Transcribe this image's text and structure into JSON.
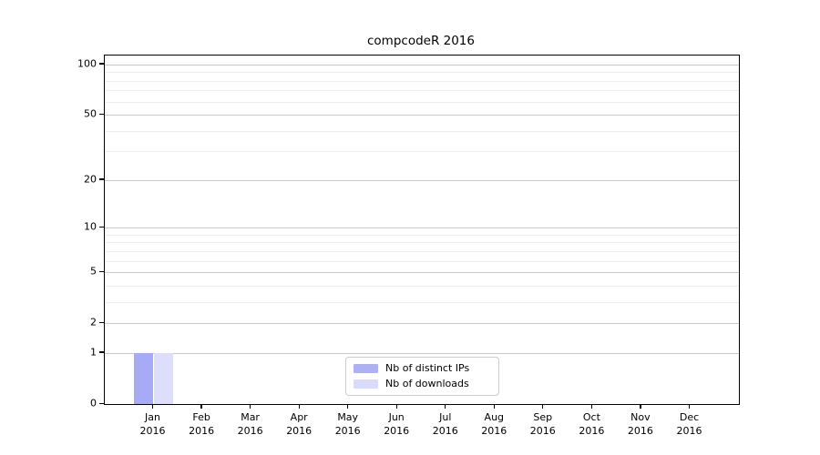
{
  "figure": {
    "background": "#ffffff"
  },
  "chart_data": {
    "type": "bar",
    "title": "compcodeR 2016",
    "categories": [
      "Jan 2016",
      "Feb 2016",
      "Mar 2016",
      "Apr 2016",
      "May 2016",
      "Jun 2016",
      "Jul 2016",
      "Aug 2016",
      "Sep 2016",
      "Oct 2016",
      "Nov 2016",
      "Dec 2016"
    ],
    "x_tick_months": [
      "Jan",
      "Feb",
      "Mar",
      "Apr",
      "May",
      "Jun",
      "Jul",
      "Aug",
      "Sep",
      "Oct",
      "Nov",
      "Dec"
    ],
    "x_tick_year": "2016",
    "series": [
      {
        "name": "Nb of distinct IPs",
        "color": "#a7aaf6",
        "values": [
          1,
          0,
          0,
          0,
          0,
          0,
          0,
          0,
          0,
          0,
          0,
          0
        ]
      },
      {
        "name": "Nb of downloads",
        "color": "#dcdefb",
        "values": [
          1,
          0,
          0,
          0,
          0,
          0,
          0,
          0,
          0,
          0,
          0,
          0
        ]
      }
    ],
    "xlabel": "",
    "ylabel": "",
    "yscale": "log10(1+x)",
    "ylim": [
      0,
      113
    ],
    "y_major_ticks": [
      0,
      1,
      2,
      5,
      10,
      20,
      50,
      100
    ],
    "y_minor_gridlines": [
      3,
      4,
      6,
      7,
      8,
      9,
      30,
      40,
      60,
      70,
      80,
      90
    ],
    "grid": true,
    "legend_position": "lower center"
  },
  "legend": {
    "items": [
      {
        "label": "Nb of distinct IPs",
        "color": "#adb1f3"
      },
      {
        "label": "Nb of downloads",
        "color": "#d8dbfa"
      }
    ]
  },
  "colors": {
    "grid_major": "#c9c9c9",
    "grid_minor": "#ededed",
    "spine": "#000000",
    "text": "#000000",
    "legend_border": "#cccccc"
  }
}
